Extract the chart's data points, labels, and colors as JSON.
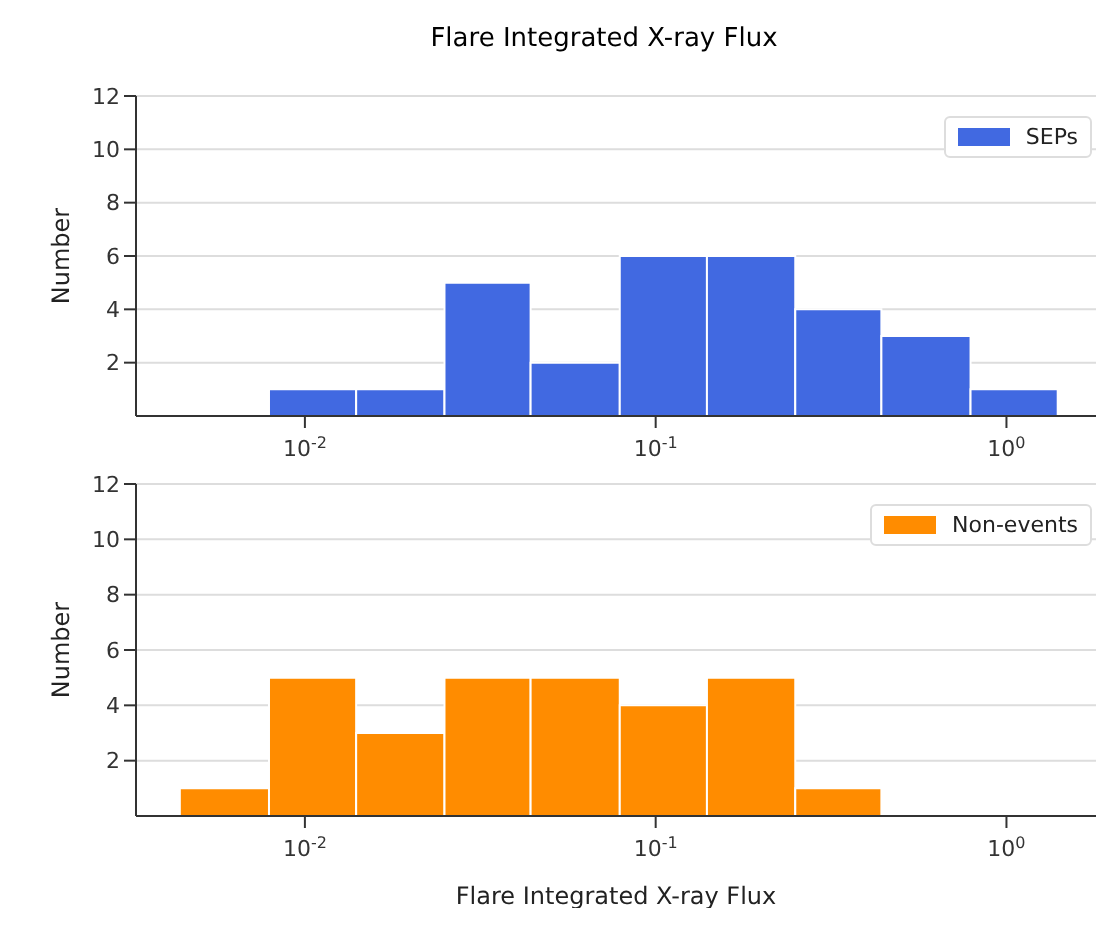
{
  "chart_data": [
    {
      "type": "histogram",
      "title": "Flare Integrated X-ray Flux",
      "ylabel": "Number",
      "bins": [
        0.0079,
        0.014,
        0.025,
        0.044,
        0.079,
        0.14,
        0.25,
        0.44,
        0.79,
        1.4
      ],
      "series": [
        {
          "name": "SEPs",
          "color": "#4169e1",
          "values": [
            1,
            1,
            5,
            2,
            6,
            6,
            4,
            3,
            1
          ]
        }
      ],
      "log": "x",
      "xlim": [
        0.0033,
        1.8
      ],
      "xticks": [
        {
          "value": 0.01,
          "label": "10$^{-2}$"
        },
        {
          "value": 0.1,
          "label": "10$^{-1}$"
        },
        {
          "value": 1,
          "label": "10$^{0}$"
        }
      ],
      "ylim": [
        0,
        12
      ],
      "yticks": [
        2,
        4,
        6,
        8,
        10,
        12
      ],
      "grid": "y",
      "legend": "top right"
    },
    {
      "type": "histogram",
      "xlabel": "Flare Integrated X-ray Flux",
      "ylabel": "Number",
      "bins": [
        0.0044,
        0.0079,
        0.014,
        0.025,
        0.044,
        0.079,
        0.14,
        0.25,
        0.44
      ],
      "series": [
        {
          "name": "Non-events",
          "color": "#ff8c00",
          "values": [
            1,
            5,
            3,
            5,
            5,
            4,
            5,
            1
          ]
        }
      ],
      "log": "x",
      "xlim": [
        0.0033,
        1.8
      ],
      "xticks": [
        {
          "value": 0.01,
          "label": "10$^{-2}$"
        },
        {
          "value": 0.1,
          "label": "10$^{-1}$"
        },
        {
          "value": 1,
          "label": "10$^{0}$"
        }
      ],
      "ylim": [
        0,
        12
      ],
      "yticks": [
        2,
        4,
        6,
        8,
        10,
        12
      ],
      "grid": "y",
      "legend": "top right"
    }
  ]
}
